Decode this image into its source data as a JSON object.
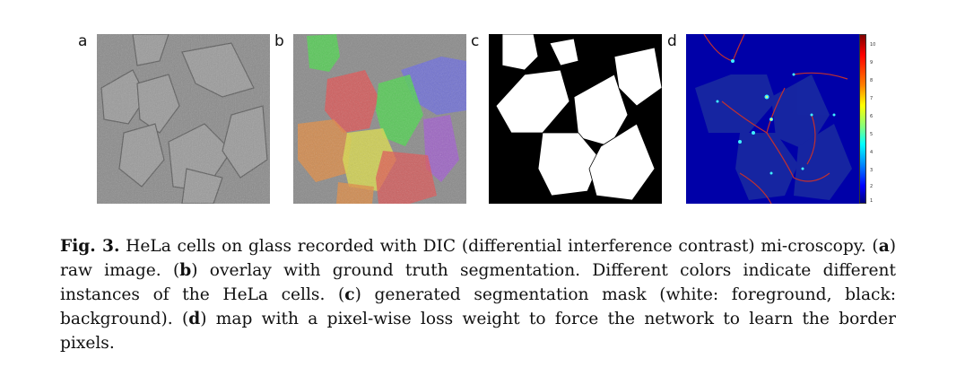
{
  "figure": {
    "panels": [
      {
        "label": "a",
        "description_icon": "raw-microscopy-image"
      },
      {
        "label": "b",
        "description_icon": "color-overlay-segmentation"
      },
      {
        "label": "c",
        "description_icon": "binary-segmentation-mask"
      },
      {
        "label": "d",
        "description_icon": "loss-weight-heatmap"
      }
    ],
    "colorbar_ticks": [
      "10",
      "9",
      "8",
      "7",
      "6",
      "5",
      "4",
      "3",
      "2",
      "1"
    ],
    "colors": {
      "overlay_green": "#4fd14f",
      "overlay_red": "#e05050",
      "overlay_blue": "#6a6ae0",
      "overlay_orange": "#e08a40",
      "overlay_yellow": "#d8d84a",
      "overlay_purple": "#a05ad0",
      "heatmap_bg": "#1c2fa0",
      "heatmap_border": "#c03030"
    }
  },
  "caption": {
    "fig_label": "Fig. 3.",
    "part1": " HeLa cells on glass recorded with DIC (differential interference contrast) mi-croscopy. (",
    "a": "a",
    "part2": ") raw image. (",
    "b": "b",
    "part3": ") overlay with ground truth segmentation. Different colors indicate different instances of the HeLa cells. (",
    "c": "c",
    "part4": ") generated segmentation mask (white: foreground, black: background). (",
    "d": "d",
    "part5": ") map with a pixel-wise loss weight to force the network to learn the border pixels."
  }
}
